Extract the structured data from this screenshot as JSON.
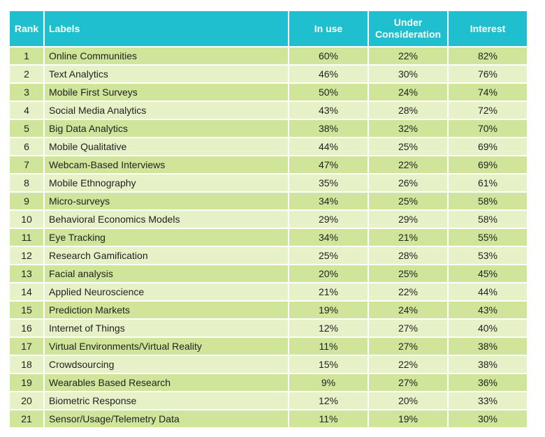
{
  "chart_data": {
    "type": "table",
    "columns": [
      "Rank",
      "Labels",
      "In use",
      "Under Consideration",
      "Interest"
    ],
    "rows": [
      [
        "1",
        "Online Communities",
        "60%",
        "22%",
        "82%"
      ],
      [
        "2",
        "Text Analytics",
        "46%",
        "30%",
        "76%"
      ],
      [
        "3",
        "Mobile First Surveys",
        "50%",
        "24%",
        "74%"
      ],
      [
        "4",
        "Social Media Analytics",
        "43%",
        "28%",
        "72%"
      ],
      [
        "5",
        "Big Data Analytics",
        "38%",
        "32%",
        "70%"
      ],
      [
        "6",
        "Mobile Qualitative",
        "44%",
        "25%",
        "69%"
      ],
      [
        "7",
        "Webcam-Based Interviews",
        "47%",
        "22%",
        "69%"
      ],
      [
        "8",
        "Mobile Ethnography",
        "35%",
        "26%",
        "61%"
      ],
      [
        "9",
        "Micro-surveys",
        "34%",
        "25%",
        "58%"
      ],
      [
        "10",
        "Behavioral Economics Models",
        "29%",
        "29%",
        "58%"
      ],
      [
        "11",
        "Eye Tracking",
        "34%",
        "21%",
        "55%"
      ],
      [
        "12",
        "Research Gamification",
        "25%",
        "28%",
        "53%"
      ],
      [
        "13",
        "Facial analysis",
        "20%",
        "25%",
        "45%"
      ],
      [
        "14",
        "Applied Neuroscience",
        "21%",
        "22%",
        "44%"
      ],
      [
        "15",
        "Prediction Markets",
        "19%",
        "24%",
        "43%"
      ],
      [
        "16",
        "Internet of Things",
        "12%",
        "27%",
        "40%"
      ],
      [
        "17",
        "Virtual Environments/Virtual Reality",
        "11%",
        "27%",
        "38%"
      ],
      [
        "18",
        "Crowdsourcing",
        "15%",
        "22%",
        "38%"
      ],
      [
        "19",
        "Wearables Based Research",
        "9%",
        "27%",
        "36%"
      ],
      [
        "20",
        "Biometric Response",
        "12%",
        "20%",
        "33%"
      ],
      [
        "21",
        "Sensor/Usage/Telemetry Data",
        "11%",
        "19%",
        "30%"
      ]
    ]
  },
  "colors": {
    "header_bg": "#1fbfcf",
    "header_text": "#ffffff",
    "row_dark": "#cfe69a",
    "row_light": "#e6f1c8"
  }
}
